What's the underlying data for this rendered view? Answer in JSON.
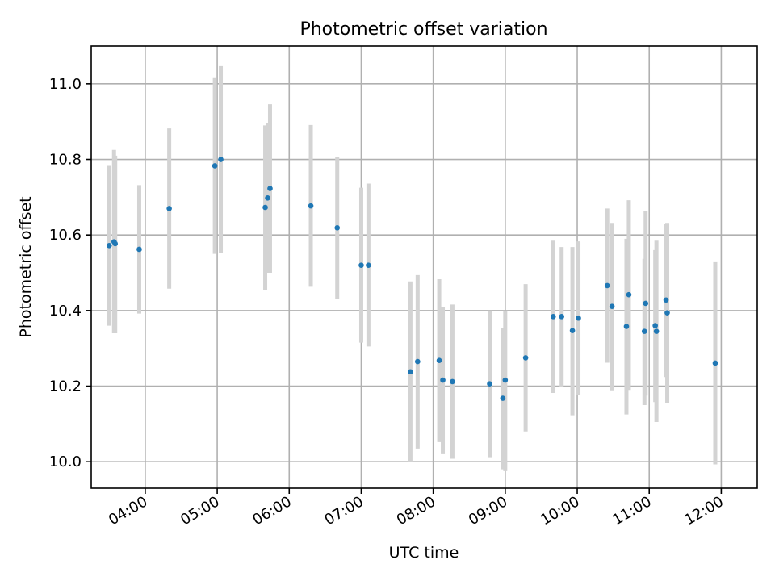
{
  "chart_data": {
    "type": "scatter",
    "title": "Photometric offset variation",
    "xlabel": "UTC time",
    "ylabel": "Photometric offset",
    "x_unit": "time-of-day",
    "xlim": [
      "03:15",
      "12:30"
    ],
    "ylim": [
      9.93,
      11.1
    ],
    "x_ticks": [
      "04:00",
      "05:00",
      "06:00",
      "07:00",
      "08:00",
      "09:00",
      "10:00",
      "11:00",
      "12:00"
    ],
    "y_ticks": [
      "10.0",
      "10.2",
      "10.4",
      "10.6",
      "10.8",
      "11.0"
    ],
    "grid": true,
    "marker_color": "#1f77b4",
    "errorbar_color": "#d3d3d3",
    "series": [
      {
        "points": [
          {
            "x": "03:30",
            "y": 10.572,
            "ylo": 10.36,
            "yhi": 10.783
          },
          {
            "x": "03:34",
            "y": 10.582,
            "ylo": 10.34,
            "yhi": 10.825
          },
          {
            "x": "03:35",
            "y": 10.577,
            "ylo": 10.34,
            "yhi": 10.81
          },
          {
            "x": "03:55",
            "y": 10.562,
            "ylo": 10.392,
            "yhi": 10.732
          },
          {
            "x": "04:20",
            "y": 10.67,
            "ylo": 10.458,
            "yhi": 10.882
          },
          {
            "x": "04:58",
            "y": 10.783,
            "ylo": 10.55,
            "yhi": 11.015
          },
          {
            "x": "05:03",
            "y": 10.8,
            "ylo": 10.553,
            "yhi": 11.047
          },
          {
            "x": "05:40",
            "y": 10.673,
            "ylo": 10.455,
            "yhi": 10.89
          },
          {
            "x": "05:42",
            "y": 10.698,
            "ylo": 10.5,
            "yhi": 10.895
          },
          {
            "x": "05:44",
            "y": 10.723,
            "ylo": 10.5,
            "yhi": 10.946
          },
          {
            "x": "06:18",
            "y": 10.677,
            "ylo": 10.463,
            "yhi": 10.891
          },
          {
            "x": "06:40",
            "y": 10.619,
            "ylo": 10.43,
            "yhi": 10.807
          },
          {
            "x": "07:00",
            "y": 10.52,
            "ylo": 10.315,
            "yhi": 10.725
          },
          {
            "x": "07:06",
            "y": 10.52,
            "ylo": 10.305,
            "yhi": 10.736
          },
          {
            "x": "07:41",
            "y": 10.238,
            "ylo": 10.0,
            "yhi": 10.477
          },
          {
            "x": "07:47",
            "y": 10.265,
            "ylo": 10.035,
            "yhi": 10.494
          },
          {
            "x": "08:05",
            "y": 10.268,
            "ylo": 10.052,
            "yhi": 10.483
          },
          {
            "x": "08:08",
            "y": 10.216,
            "ylo": 10.022,
            "yhi": 10.41
          },
          {
            "x": "08:16",
            "y": 10.212,
            "ylo": 10.008,
            "yhi": 10.416
          },
          {
            "x": "08:47",
            "y": 10.206,
            "ylo": 10.012,
            "yhi": 10.4
          },
          {
            "x": "08:58",
            "y": 10.168,
            "ylo": 9.98,
            "yhi": 10.355
          },
          {
            "x": "09:00",
            "y": 10.216,
            "ylo": 9.975,
            "yhi": 10.4
          },
          {
            "x": "09:17",
            "y": 10.275,
            "ylo": 10.08,
            "yhi": 10.47
          },
          {
            "x": "09:40",
            "y": 10.384,
            "ylo": 10.182,
            "yhi": 10.585
          },
          {
            "x": "09:47",
            "y": 10.384,
            "ylo": 10.198,
            "yhi": 10.568
          },
          {
            "x": "09:56",
            "y": 10.347,
            "ylo": 10.123,
            "yhi": 10.568
          },
          {
            "x": "10:01",
            "y": 10.38,
            "ylo": 10.176,
            "yhi": 10.583
          },
          {
            "x": "10:25",
            "y": 10.466,
            "ylo": 10.262,
            "yhi": 10.67
          },
          {
            "x": "10:29",
            "y": 10.411,
            "ylo": 10.189,
            "yhi": 10.632
          },
          {
            "x": "10:41",
            "y": 10.358,
            "ylo": 10.125,
            "yhi": 10.59
          },
          {
            "x": "10:43",
            "y": 10.442,
            "ylo": 10.19,
            "yhi": 10.692
          },
          {
            "x": "10:56",
            "y": 10.345,
            "ylo": 10.15,
            "yhi": 10.537
          },
          {
            "x": "10:57",
            "y": 10.419,
            "ylo": 10.175,
            "yhi": 10.664
          },
          {
            "x": "11:05",
            "y": 10.36,
            "ylo": 10.158,
            "yhi": 10.56
          },
          {
            "x": "11:06",
            "y": 10.345,
            "ylo": 10.105,
            "yhi": 10.585
          },
          {
            "x": "11:14",
            "y": 10.428,
            "ylo": 10.224,
            "yhi": 10.63
          },
          {
            "x": "11:15",
            "y": 10.394,
            "ylo": 10.155,
            "yhi": 10.632
          },
          {
            "x": "11:55",
            "y": 10.261,
            "ylo": 9.993,
            "yhi": 10.528
          }
        ]
      }
    ]
  }
}
